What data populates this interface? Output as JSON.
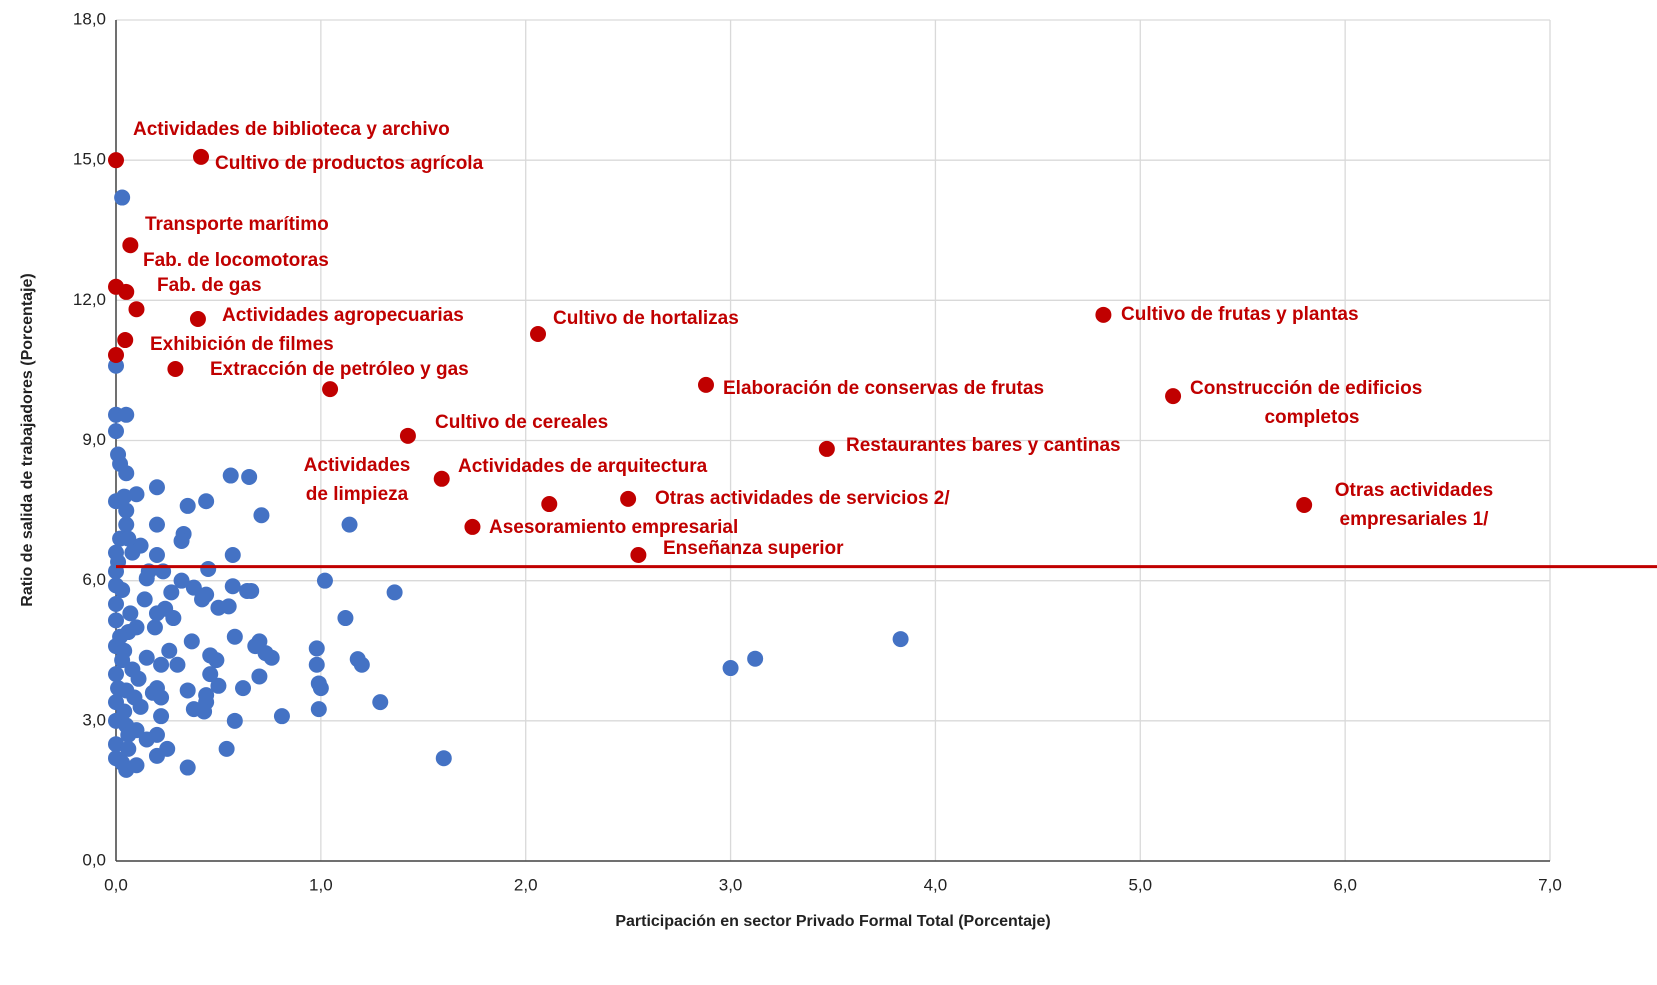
{
  "chart_data": {
    "type": "scatter",
    "xlabel": "Participación en sector Privado Formal Total (Porcentaje)",
    "ylabel": "Ratio de salida de trabajadores (Porcentaje)",
    "xlim": [
      0,
      7
    ],
    "ylim": [
      0,
      18
    ],
    "xticks": [
      {
        "value": 0,
        "label": "0,0"
      },
      {
        "value": 1,
        "label": "1,0"
      },
      {
        "value": 2,
        "label": "2,0"
      },
      {
        "value": 3,
        "label": "3,0"
      },
      {
        "value": 4,
        "label": "4,0"
      },
      {
        "value": 5,
        "label": "5,0"
      },
      {
        "value": 6,
        "label": "6,0"
      },
      {
        "value": 7,
        "label": "7,0"
      }
    ],
    "yticks": [
      {
        "value": 0,
        "label": "0,0"
      },
      {
        "value": 3,
        "label": "3,0"
      },
      {
        "value": 6,
        "label": "6,0"
      },
      {
        "value": 9,
        "label": "9,0"
      },
      {
        "value": 12,
        "label": "12,0"
      },
      {
        "value": 15,
        "label": "15,0"
      },
      {
        "value": 18,
        "label": "18,0"
      }
    ],
    "grid": true,
    "reference_line": {
      "value": 6.3,
      "color": "#c00000"
    },
    "series": [
      {
        "color": "#4472c4",
        "x": [
          0.03,
          0.0,
          0.0,
          0.05,
          0.0,
          0.01,
          0.02,
          0.05,
          0.2,
          0.56,
          0.65,
          0.44,
          0.35,
          0.71,
          1.14,
          0.1,
          0.0,
          0.05,
          0.2,
          0.33,
          0.32,
          0.12,
          0.05,
          0.02,
          0.0,
          0.08,
          0.2,
          0.57,
          0.45,
          0.23,
          0.16,
          0.0,
          0.15,
          0.32,
          1.02,
          0.38,
          0.57,
          0.64,
          0.66,
          1.36,
          0.27,
          0.44,
          0.42,
          0.55,
          0.5,
          0.14,
          0.0,
          0.03,
          0.24,
          0.2,
          1.12,
          0.28,
          0.0,
          0.1,
          0.19,
          0.06,
          0.58,
          0.7,
          0.37,
          0.68,
          0.98,
          0.15,
          0.46,
          0.49,
          0.0,
          0.04,
          0.26,
          0.73,
          0.76,
          1.18,
          1.2,
          0.98,
          0.3,
          0.22,
          3.83,
          3.12,
          3.0,
          0.46,
          0.7,
          0.0,
          0.08,
          0.11,
          0.99,
          1.0,
          0.5,
          0.62,
          0.35,
          0.44,
          0.18,
          0.2,
          0.22,
          0.05,
          0.0,
          0.12,
          0.44,
          1.29,
          0.38,
          0.43,
          0.99,
          0.81,
          0.22,
          0.58,
          0.0,
          0.05,
          0.1,
          0.2,
          0.15,
          0.0,
          0.25,
          0.54,
          0.06,
          0.2,
          1.6,
          0.0,
          0.1,
          0.35,
          0.05,
          0.03,
          0.04,
          0.02,
          0.07,
          0.01,
          0.03,
          0.06,
          0.09,
          0.0,
          0.01,
          0.06,
          0.04
        ],
        "values": [
          14.2,
          10.6,
          9.55,
          9.55,
          9.2,
          8.7,
          8.5,
          8.3,
          8.0,
          8.25,
          8.22,
          7.7,
          7.6,
          7.4,
          7.2,
          7.85,
          7.7,
          7.5,
          7.2,
          7.0,
          6.85,
          6.75,
          7.2,
          6.9,
          6.6,
          6.6,
          6.55,
          6.55,
          6.25,
          6.2,
          6.2,
          6.2,
          6.05,
          6.0,
          6.0,
          5.85,
          5.88,
          5.78,
          5.78,
          5.75,
          5.75,
          5.7,
          5.6,
          5.45,
          5.42,
          5.6,
          5.5,
          5.8,
          5.4,
          5.3,
          5.2,
          5.2,
          5.15,
          5.0,
          5.0,
          4.9,
          4.8,
          4.7,
          4.7,
          4.6,
          4.55,
          4.35,
          4.4,
          4.3,
          4.6,
          4.5,
          4.5,
          4.45,
          4.35,
          4.32,
          4.2,
          4.2,
          4.2,
          4.2,
          4.75,
          4.33,
          4.13,
          4.0,
          3.95,
          4.0,
          4.1,
          3.9,
          3.8,
          3.7,
          3.75,
          3.7,
          3.65,
          3.55,
          3.6,
          3.7,
          3.5,
          3.65,
          3.4,
          3.3,
          3.4,
          3.4,
          3.25,
          3.2,
          3.25,
          3.1,
          3.1,
          3.0,
          3.0,
          2.9,
          2.8,
          2.7,
          2.6,
          2.5,
          2.4,
          2.4,
          2.4,
          2.25,
          2.2,
          2.2,
          2.05,
          2.0,
          1.95,
          2.1,
          3.2,
          4.8,
          5.3,
          3.7,
          4.3,
          2.7,
          3.5,
          5.9,
          6.4,
          6.9,
          7.8
        ]
      },
      {
        "color": "#c00000",
        "x": [
          0.0,
          0.415,
          0.07,
          0.0,
          0.05,
          0.1,
          0.4,
          0.045,
          0.0,
          0.29,
          2.06,
          4.82,
          1.045,
          2.88,
          5.16,
          1.425,
          3.47,
          1.59,
          2.115,
          2.5,
          1.74,
          2.55,
          5.8
        ],
        "values": [
          15.0,
          15.07,
          13.18,
          12.29,
          12.18,
          11.81,
          11.6,
          11.15,
          10.83,
          10.53,
          11.28,
          11.69,
          10.1,
          10.19,
          9.95,
          9.1,
          8.82,
          8.18,
          7.64,
          7.75,
          7.15,
          6.55,
          7.62
        ],
        "labels": [
          [
            "Actividades de biblioteca y archivo"
          ],
          [
            "Cultivo de productos agrícola"
          ],
          [
            "Transporte marítimo"
          ],
          [
            "Fab. de locomotoras"
          ],
          null,
          [
            "Fab. de gas"
          ],
          [
            "Actividades agropecuarias"
          ],
          [
            "Exhibición de filmes"
          ],
          null,
          [
            "Extracción de petróleo y gas"
          ],
          [
            "Cultivo de hortalizas"
          ],
          [
            "Cultivo de frutas y plantas"
          ],
          [
            "Actividades",
            "de limpieza"
          ],
          [
            "Elaboración de conservas de frutas"
          ],
          [
            "Construcción de edificios",
            "completos"
          ],
          [
            "Cultivo de cereales"
          ],
          [
            "Restaurantes bares y cantinas"
          ],
          [
            "Actividades de arquitectura"
          ],
          null,
          [
            "Otras actividades de servicios 2/"
          ],
          [
            "Asesoramiento empresarial"
          ],
          [
            "Enseñanza superior"
          ],
          [
            "Otras actividades",
            "empresariales 1/"
          ]
        ]
      }
    ]
  }
}
